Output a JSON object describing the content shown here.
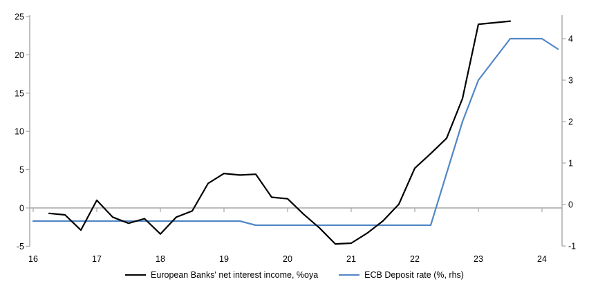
{
  "chart": {
    "legend": [
      {
        "label": "European Banks' net interest income, %oya",
        "color": "#000000"
      },
      {
        "label": "ECB Deposit rate (%, rhs)",
        "color": "#5186c5"
      }
    ],
    "colors": {
      "axis": "#a6a6a6",
      "zero_line": "#a6a6a6",
      "nii_line": "#000000",
      "deposit_line": "#5186c5",
      "text": "#000000"
    }
  },
  "chart_data": {
    "type": "line",
    "title": "",
    "xlabel": "",
    "ylabel_left": "",
    "ylabel_right": "",
    "grid": false,
    "legend_position": "bottom-center",
    "x_axis": {
      "tick_labels": [
        "16",
        "17",
        "18",
        "19",
        "20",
        "21",
        "22",
        "23",
        "24"
      ],
      "tick_values": [
        16,
        17,
        18,
        19,
        20,
        21,
        22,
        23,
        24
      ],
      "range": [
        16,
        24.4
      ],
      "ticks_on_zero_line": true
    },
    "y_axis_left": {
      "tick_values": [
        25,
        20,
        15,
        10,
        5,
        0,
        -5
      ],
      "range": [
        -5,
        25
      ],
      "zero_gridline": true
    },
    "y_axis_right": {
      "tick_values": [
        4,
        3,
        2,
        1,
        0,
        -1
      ],
      "range": [
        -1,
        4.6
      ]
    },
    "series": [
      {
        "name": "European Banks' net interest income, %oya",
        "axis": "left",
        "color": "#000000",
        "x": [
          16.25,
          16.5,
          16.75,
          17.0,
          17.25,
          17.5,
          17.75,
          18.0,
          18.25,
          18.5,
          18.75,
          19.0,
          19.25,
          19.5,
          19.75,
          20.0,
          20.25,
          20.5,
          20.75,
          21.0,
          21.25,
          21.5,
          21.75,
          22.0,
          22.25,
          22.5,
          22.75,
          23.0,
          23.25,
          23.5
        ],
        "values": [
          -0.7,
          -0.9,
          -2.9,
          1.0,
          -1.2,
          -2.0,
          -1.4,
          -3.4,
          -1.2,
          -0.4,
          3.2,
          4.5,
          4.3,
          4.4,
          1.4,
          1.2,
          -0.8,
          -2.6,
          -4.7,
          -4.6,
          -3.3,
          -1.7,
          0.5,
          5.2,
          7.1,
          9.1,
          14.3,
          24.0,
          24.2,
          24.4
        ]
      },
      {
        "name": "ECB Deposit rate (%, rhs)",
        "axis": "right",
        "color": "#5186c5",
        "x": [
          16.0,
          16.25,
          16.5,
          16.75,
          17.0,
          17.25,
          17.5,
          17.75,
          18.0,
          18.25,
          18.5,
          18.75,
          19.0,
          19.25,
          19.5,
          19.75,
          20.0,
          20.25,
          20.5,
          20.75,
          21.0,
          21.25,
          21.5,
          21.75,
          22.0,
          22.25,
          22.5,
          22.75,
          23.0,
          23.25,
          23.5,
          23.75,
          24.0,
          24.25
        ],
        "values": [
          -0.4,
          -0.4,
          -0.4,
          -0.4,
          -0.4,
          -0.4,
          -0.4,
          -0.4,
          -0.4,
          -0.4,
          -0.4,
          -0.4,
          -0.4,
          -0.4,
          -0.5,
          -0.5,
          -0.5,
          -0.5,
          -0.5,
          -0.5,
          -0.5,
          -0.5,
          -0.5,
          -0.5,
          -0.5,
          -0.5,
          0.75,
          2.0,
          3.0,
          3.5,
          4.0,
          4.0,
          4.0,
          3.75
        ]
      }
    ]
  }
}
